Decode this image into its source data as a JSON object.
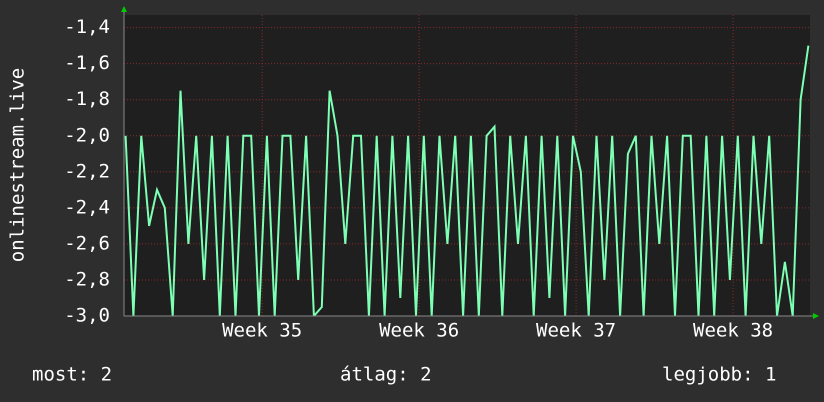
{
  "chart_data": {
    "type": "line",
    "ylabel": "onlinestream.live",
    "x": [
      34.13,
      34.18,
      34.23,
      34.28,
      34.33,
      34.38,
      34.43,
      34.48,
      34.53,
      34.58,
      34.63,
      34.68,
      34.73,
      34.78,
      34.83,
      34.88,
      34.93,
      34.98,
      35.03,
      35.08,
      35.13,
      35.18,
      35.23,
      35.28,
      35.33,
      35.38,
      35.43,
      35.48,
      35.53,
      35.58,
      35.63,
      35.68,
      35.73,
      35.78,
      35.83,
      35.88,
      35.93,
      35.98,
      36.03,
      36.08,
      36.13,
      36.18,
      36.23,
      36.28,
      36.33,
      36.38,
      36.43,
      36.48,
      36.53,
      36.58,
      36.63,
      36.68,
      36.73,
      36.78,
      36.83,
      36.88,
      36.93,
      36.98,
      37.03,
      37.08,
      37.13,
      37.18,
      37.23,
      37.28,
      37.33,
      37.38,
      37.43,
      37.48,
      37.53,
      37.58,
      37.63,
      37.68,
      37.73,
      37.78,
      37.83,
      37.88,
      37.93,
      37.98,
      38.03,
      38.08,
      38.13,
      38.18,
      38.23,
      38.28,
      38.33,
      38.38,
      38.43,
      38.48
    ],
    "series": [
      {
        "color": "#7dffb4",
        "values": [
          -2.0,
          -3.0,
          -2.0,
          -2.5,
          -2.3,
          -2.4,
          -3.0,
          -1.75,
          -2.6,
          -2.0,
          -2.8,
          -2.0,
          -3.0,
          -2.0,
          -3.0,
          -2.0,
          -2.0,
          -3.0,
          -2.0,
          -3.0,
          -2.0,
          -2.0,
          -2.8,
          -2.0,
          -3.0,
          -2.95,
          -1.75,
          -2.0,
          -2.6,
          -2.0,
          -2.0,
          -3.0,
          -2.0,
          -3.0,
          -2.0,
          -2.9,
          -2.0,
          -3.0,
          -2.0,
          -3.0,
          -2.0,
          -2.6,
          -2.0,
          -3.0,
          -2.0,
          -3.0,
          -2.0,
          -1.95,
          -3.0,
          -2.0,
          -2.6,
          -2.0,
          -3.0,
          -2.0,
          -2.9,
          -2.0,
          -3.0,
          -2.0,
          -2.2,
          -3.0,
          -2.0,
          -2.8,
          -2.0,
          -3.0,
          -2.1,
          -2.0,
          -3.0,
          -2.0,
          -2.6,
          -2.0,
          -3.0,
          -2.0,
          -2.0,
          -3.0,
          -2.0,
          -3.0,
          -2.0,
          -2.8,
          -2.0,
          -3.0,
          -2.0,
          -2.6,
          -2.0,
          -3.0,
          -2.7,
          -3.0,
          -1.8,
          -1.5
        ]
      }
    ],
    "xlim": [
      34.12,
      38.49
    ],
    "xticks": [
      {
        "value": 35,
        "label": "Week 35"
      },
      {
        "value": 36,
        "label": "Week 36"
      },
      {
        "value": 37,
        "label": "Week 37"
      },
      {
        "value": 38,
        "label": "Week 38"
      }
    ],
    "ylim": [
      -3.0,
      -1.33
    ],
    "yticks": [
      {
        "value": -3.0,
        "label": "-3,0"
      },
      {
        "value": -2.8,
        "label": "-2,8"
      },
      {
        "value": -2.6,
        "label": "-2,6"
      },
      {
        "value": -2.4,
        "label": "-2,4"
      },
      {
        "value": -2.2,
        "label": "-2,2"
      },
      {
        "value": -2.0,
        "label": "-2,0"
      },
      {
        "value": -1.8,
        "label": "-1,8"
      },
      {
        "value": -1.6,
        "label": "-1,6"
      },
      {
        "value": -1.4,
        "label": "-1,4"
      }
    ],
    "grid": true,
    "footer": [
      "most: 2",
      "átlag: 2",
      "legjobb: 1"
    ]
  }
}
